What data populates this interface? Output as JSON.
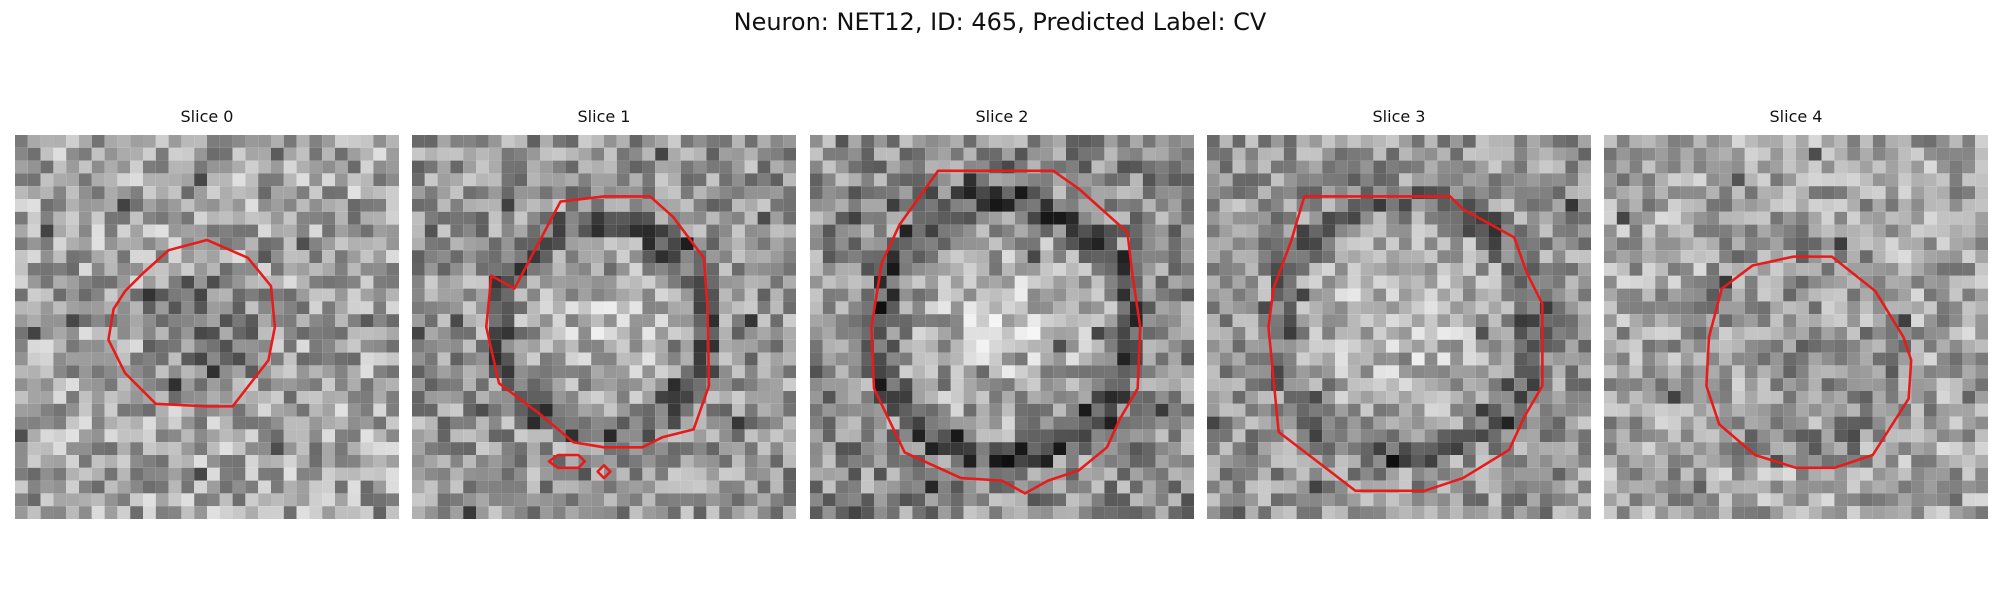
{
  "figure": {
    "title": "Neuron: NET12, ID: 465, Predicted Label: CV",
    "overlay_color": "#e81a1a"
  },
  "panels": [
    {
      "title": "Slice 0"
    },
    {
      "title": "Slice 1"
    },
    {
      "title": "Slice 2"
    },
    {
      "title": "Slice 3"
    },
    {
      "title": "Slice 4"
    }
  ]
}
